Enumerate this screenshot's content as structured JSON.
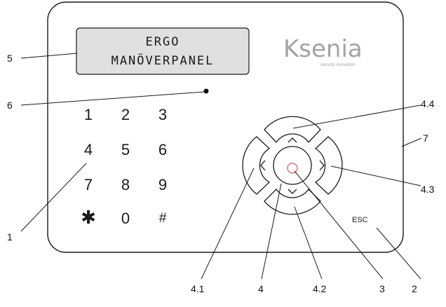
{
  "display": {
    "line1": "ERGO",
    "line2": "MANÖVERPANEL"
  },
  "brand": {
    "logo_text": "Ksenia",
    "tagline": "security innovation"
  },
  "keypad": {
    "keys": [
      "1",
      "2",
      "3",
      "4",
      "5",
      "6",
      "7",
      "8",
      "9",
      "✱",
      "0",
      "#"
    ]
  },
  "esc_label": "ESC",
  "callouts": {
    "c1": "1",
    "c2": "2",
    "c3": "3",
    "c4": "4",
    "c41": "4.1",
    "c42": "4.2",
    "c43": "4.3",
    "c44": "4.4",
    "c5": "5",
    "c6": "6",
    "c7": "7"
  },
  "colors": {
    "outline": "#1a1a1a",
    "logo": "#a3a3a3",
    "lcd_fill": "#e0e0e0",
    "center_ring": "#e03030"
  }
}
